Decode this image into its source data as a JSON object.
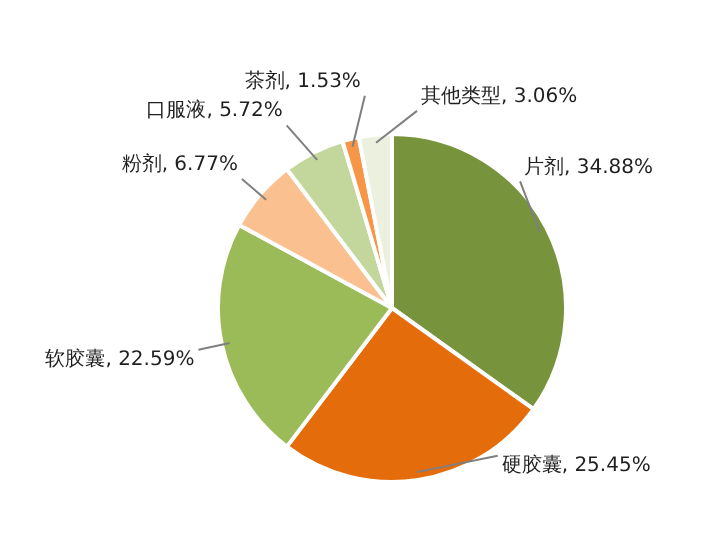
{
  "chart_data": {
    "type": "pie",
    "categories": [
      "片剂",
      "硬胶囊",
      "软胶囊",
      "粉剂",
      "口服液",
      "茶剂",
      "其他类型"
    ],
    "value_labels": [
      "34.88%",
      "25.45%",
      "22.59%",
      "6.77%",
      "5.72%",
      "1.53%",
      "3.06%"
    ],
    "values": [
      34.88,
      25.45,
      22.59,
      6.77,
      5.72,
      1.53,
      3.06
    ],
    "colors": [
      "#77933c",
      "#e46c0a",
      "#9bbb59",
      "#fac090",
      "#c3d69b",
      "#f79646",
      "#ebf1de"
    ],
    "legend": false
  }
}
